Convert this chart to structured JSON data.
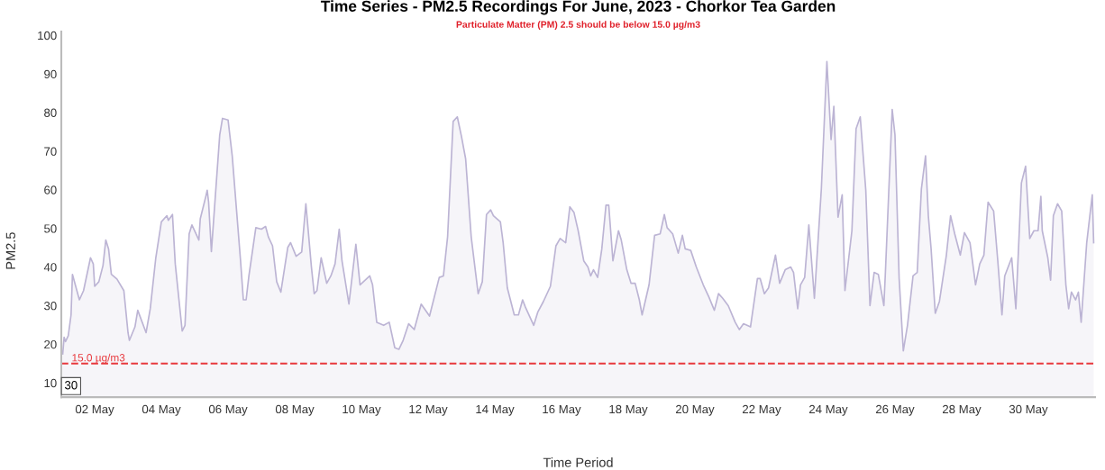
{
  "chart_data": {
    "type": "area",
    "title": "Time Series - PM2.5 Recordings For June, 2023 - Chorkor Tea Garden",
    "subtitle": "Particulate Matter (PM) 2.5 should be below 15.0 µg/m3",
    "xlabel": "Time Period",
    "ylabel": "PM2.5",
    "annotations": [
      "30"
    ],
    "xlim": [
      "2023-05-01",
      "2023-06-01"
    ],
    "xticks": [
      {
        "value": "2023-05-02",
        "label": "02 May"
      },
      {
        "value": "2023-05-04",
        "label": "04 May"
      },
      {
        "value": "2023-05-06",
        "label": "06 May"
      },
      {
        "value": "2023-05-08",
        "label": "08 May"
      },
      {
        "value": "2023-05-10",
        "label": "10 May"
      },
      {
        "value": "2023-05-12",
        "label": "12 May"
      },
      {
        "value": "2023-05-14",
        "label": "14 May"
      },
      {
        "value": "2023-05-16",
        "label": "16 May"
      },
      {
        "value": "2023-05-18",
        "label": "18 May"
      },
      {
        "value": "2023-05-20",
        "label": "20 May"
      },
      {
        "value": "2023-05-22",
        "label": "22 May"
      },
      {
        "value": "2023-05-24",
        "label": "24 May"
      },
      {
        "value": "2023-05-26",
        "label": "26 May"
      },
      {
        "value": "2023-05-28",
        "label": "28 May"
      },
      {
        "value": "2023-05-30",
        "label": "30 May"
      }
    ],
    "ylim": [
      6.3,
      101
    ],
    "yticks": [
      10,
      20,
      30,
      40,
      50,
      60,
      70,
      80,
      90,
      100
    ],
    "grid": false,
    "legend": false,
    "ref_lines": [
      {
        "axis": "y",
        "value": 15,
        "label": "15.0 µg/m3",
        "color": "#e8383d",
        "line_style": "dashed"
      }
    ],
    "x": [
      "2023-05-01T01:00",
      "2023-05-01T02:00",
      "2023-05-01T03:00",
      "2023-05-01T05:00",
      "2023-05-01T07:00",
      "2023-05-01T08:00",
      "2023-05-01T13:00",
      "2023-05-01T16:00",
      "2023-05-01T21:00",
      "2023-05-01T23:00",
      "2023-05-02T00:00",
      "2023-05-02T03:00",
      "2023-05-02T06:00",
      "2023-05-02T08:00",
      "2023-05-02T10:00",
      "2023-05-02T12:00",
      "2023-05-02T16:00",
      "2023-05-02T21:00",
      "2023-05-03T00:00",
      "2023-05-03T01:00",
      "2023-05-03T05:00",
      "2023-05-03T07:00",
      "2023-05-03T13:00",
      "2023-05-03T16:00",
      "2023-05-03T20:00",
      "2023-05-04T00:00",
      "2023-05-04T04:00",
      "2023-05-04T05:00",
      "2023-05-04T08:00",
      "2023-05-04T10:00",
      "2023-05-04T15:00",
      "2023-05-04T17:00",
      "2023-05-04T20:00",
      "2023-05-04T22:00",
      "2023-05-05T03:00",
      "2023-05-05T04:00",
      "2023-05-05T08:00",
      "2023-05-05T09:00",
      "2023-05-05T10:00",
      "2023-05-05T12:00",
      "2023-05-05T18:00",
      "2023-05-05T20:00",
      "2023-05-06T00:00",
      "2023-05-06T03:00",
      "2023-05-06T09:00",
      "2023-05-06T11:00",
      "2023-05-06T13:00",
      "2023-05-06T15:00",
      "2023-05-06T20:00",
      "2023-05-07T00:00",
      "2023-05-07T03:00",
      "2023-05-07T05:00",
      "2023-05-07T08:00",
      "2023-05-07T11:00",
      "2023-05-07T14:00",
      "2023-05-07T19:00",
      "2023-05-07T21:00",
      "2023-05-08T01:00",
      "2023-05-08T05:00",
      "2023-05-08T08:00",
      "2023-05-08T12:00",
      "2023-05-08T14:00",
      "2023-05-08T16:00",
      "2023-05-08T19:00",
      "2023-05-08T23:00",
      "2023-05-09T02:00",
      "2023-05-09T05:00",
      "2023-05-09T08:00",
      "2023-05-09T10:00",
      "2023-05-09T15:00",
      "2023-05-09T20:00",
      "2023-05-09T23:00",
      "2023-05-10T06:00",
      "2023-05-10T08:00",
      "2023-05-10T11:00",
      "2023-05-10T16:00",
      "2023-05-10T20:00",
      "2023-05-11T00:00",
      "2023-05-11T03:00",
      "2023-05-11T06:00",
      "2023-05-11T10:00",
      "2023-05-11T14:00",
      "2023-05-11T19:00",
      "2023-05-12T01:00",
      "2023-05-12T08:00",
      "2023-05-12T11:00",
      "2023-05-12T14:00",
      "2023-05-12T18:00",
      "2023-05-12T21:00",
      "2023-05-13T00:00",
      "2023-05-13T03:00",
      "2023-05-13T07:00",
      "2023-05-13T12:00",
      "2023-05-13T15:00",
      "2023-05-13T18:00",
      "2023-05-13T21:00",
      "2023-05-13T23:00",
      "2023-05-14T04:00",
      "2023-05-14T06:00",
      "2023-05-14T09:00",
      "2023-05-14T14:00",
      "2023-05-14T17:00",
      "2023-05-14T20:00",
      "2023-05-14T22:00",
      "2023-05-15T04:00",
      "2023-05-15T07:00",
      "2023-05-15T11:00",
      "2023-05-15T16:00",
      "2023-05-15T20:00",
      "2023-05-15T23:00",
      "2023-05-16T03:00",
      "2023-05-16T06:00",
      "2023-05-16T09:00",
      "2023-05-16T12:00",
      "2023-05-16T16:00",
      "2023-05-16T19:00",
      "2023-05-16T21:00",
      "2023-05-16T23:00",
      "2023-05-17T02:00",
      "2023-05-17T05:00",
      "2023-05-17T08:00",
      "2023-05-17T10:00",
      "2023-05-17T13:00",
      "2023-05-17T17:00",
      "2023-05-17T19:00",
      "2023-05-17T23:00",
      "2023-05-18T02:00",
      "2023-05-18T05:00",
      "2023-05-18T08:00",
      "2023-05-18T10:00",
      "2023-05-18T15:00",
      "2023-05-18T19:00",
      "2023-05-18T23:00",
      "2023-05-19T02:00",
      "2023-05-19T04:00",
      "2023-05-19T08:00",
      "2023-05-19T12:00",
      "2023-05-19T15:00",
      "2023-05-19T17:00",
      "2023-05-19T21:00",
      "2023-05-20T01:00",
      "2023-05-20T06:00",
      "2023-05-20T10:00",
      "2023-05-20T14:00",
      "2023-05-20T17:00",
      "2023-05-20T20:00",
      "2023-05-21T00:00",
      "2023-05-21T05:00",
      "2023-05-21T08:00",
      "2023-05-21T11:00",
      "2023-05-21T16:00",
      "2023-05-21T21:00",
      "2023-05-21T23:00",
      "2023-05-22T02:00",
      "2023-05-22T05:00",
      "2023-05-22T10:00",
      "2023-05-22T13:00",
      "2023-05-22T17:00",
      "2023-05-22T21:00",
      "2023-05-22T23:00",
      "2023-05-23T02:00",
      "2023-05-23T04:00",
      "2023-05-23T07:00",
      "2023-05-23T10:00",
      "2023-05-23T14:00",
      "2023-05-23T19:00",
      "2023-05-23T23:00",
      "2023-05-24T02:00",
      "2023-05-24T04:00",
      "2023-05-24T07:00",
      "2023-05-24T10:00",
      "2023-05-24T12:00",
      "2023-05-24T17:00",
      "2023-05-24T20:00",
      "2023-05-24T23:00",
      "2023-05-25T03:00",
      "2023-05-25T06:00",
      "2023-05-25T09:00",
      "2023-05-25T12:00",
      "2023-05-25T16:00",
      "2023-05-25T17:00",
      "2023-05-25T22:00",
      "2023-05-26T00:00",
      "2023-05-26T03:00",
      "2023-05-26T06:00",
      "2023-05-26T09:00",
      "2023-05-26T13:00",
      "2023-05-26T16:00",
      "2023-05-26T19:00",
      "2023-05-26T22:00",
      "2023-05-27T00:00",
      "2023-05-27T02:00",
      "2023-05-27T05:00",
      "2023-05-27T08:00",
      "2023-05-27T13:00",
      "2023-05-27T16:00",
      "2023-05-27T19:00",
      "2023-05-27T23:00",
      "2023-05-28T02:00",
      "2023-05-28T06:00",
      "2023-05-28T10:00",
      "2023-05-28T13:00",
      "2023-05-28T16:00",
      "2023-05-28T19:00",
      "2023-05-28T23:00",
      "2023-05-29T02:00",
      "2023-05-29T05:00",
      "2023-05-29T07:00",
      "2023-05-29T12:00",
      "2023-05-29T15:00",
      "2023-05-29T19:00",
      "2023-05-29T22:00",
      "2023-05-30T01:00",
      "2023-05-30T04:00",
      "2023-05-30T07:00",
      "2023-05-30T09:00",
      "2023-05-30T10:00",
      "2023-05-30T14:00",
      "2023-05-30T16:00",
      "2023-05-30T18:00",
      "2023-05-30T21:00",
      "2023-05-31T00:00",
      "2023-05-31T03:00",
      "2023-05-31T05:00",
      "2023-05-31T07:00",
      "2023-05-31T10:00",
      "2023-05-31T12:00",
      "2023-05-31T14:00",
      "2023-05-31T18:00",
      "2023-05-31T22:00",
      "2023-05-31T23:00"
    ],
    "series": [
      {
        "color": "#bcb4d4",
        "values": [
          17.5,
          21.8,
          20.7,
          22.2,
          27.6,
          38.1,
          31.5,
          33.9,
          42.4,
          40.8,
          35,
          36.2,
          40.4,
          47,
          44.7,
          38.1,
          36.9,
          33.9,
          23,
          21,
          24.5,
          28.8,
          23,
          29.2,
          42.4,
          51.7,
          53.3,
          52.1,
          53.6,
          40.8,
          23.4,
          24.9,
          48.6,
          50.9,
          47,
          52.5,
          58.3,
          59.9,
          56.8,
          44,
          74.2,
          78.5,
          78.1,
          68.8,
          41.6,
          31.5,
          31.5,
          37.7,
          50.2,
          49.8,
          50.5,
          47.8,
          45.5,
          36.2,
          33.5,
          45.1,
          46.3,
          42.8,
          43.9,
          56.4,
          40,
          33.1,
          33.9,
          42.4,
          35.8,
          37.7,
          40.8,
          49.8,
          41.6,
          30.4,
          45.9,
          35.4,
          37.7,
          35.4,
          25.7,
          24.9,
          25.7,
          19.1,
          18.7,
          21,
          25.3,
          23.8,
          30.4,
          27.3,
          37.3,
          37.7,
          47.8,
          77.7,
          78.9,
          73.8,
          68,
          47.8,
          33.1,
          36.2,
          53.6,
          54.8,
          53.3,
          51.7,
          46.3,
          34.6,
          27.6,
          27.6,
          31.5,
          29.6,
          24.9,
          28.4,
          31.1,
          35,
          45.5,
          47.4,
          46.3,
          55.6,
          54.1,
          49.4,
          41.6,
          40,
          37.7,
          39.3,
          37.3,
          44.7,
          56,
          56,
          41.6,
          49.4,
          47,
          39.3,
          35.8,
          35.8,
          31.5,
          27.6,
          35.4,
          48.2,
          48.6,
          53.6,
          50.2,
          48.6,
          43.6,
          48.2,
          44.7,
          44.3,
          40,
          35.4,
          32.3,
          28.8,
          33.1,
          31.9,
          30,
          25.7,
          23.8,
          25.3,
          24.5,
          37,
          37,
          33.1,
          34.6,
          43.1,
          35.8,
          39.3,
          40,
          38.6,
          29.2,
          35.4,
          37.3,
          50.9,
          31.9,
          60.2,
          93.2,
          73,
          81.6,
          52.9,
          58.7,
          33.9,
          49.4,
          75.8,
          78.9,
          59.9,
          30,
          38.6,
          38.1,
          30,
          37.7,
          80.8,
          74.2,
          37,
          18.3,
          24.9,
          37.7,
          38.6,
          60.2,
          68.8,
          53.3,
          44.7,
          28,
          31.1,
          43.1,
          53.3,
          48.6,
          43.1,
          48.9,
          46.3,
          35.4,
          40.8,
          43.1,
          56.8,
          54.5,
          41.6,
          27.6,
          37.7,
          42.4,
          29.2,
          61.8,
          66.1,
          47.4,
          49.4,
          49.4,
          58.3,
          49.4,
          42.4,
          36.6,
          53.3,
          56.4,
          54.5,
          35.4,
          29.2,
          33.5,
          31.5,
          33.5,
          25.7,
          46.3,
          58.7,
          46.3
        ]
      }
    ]
  }
}
